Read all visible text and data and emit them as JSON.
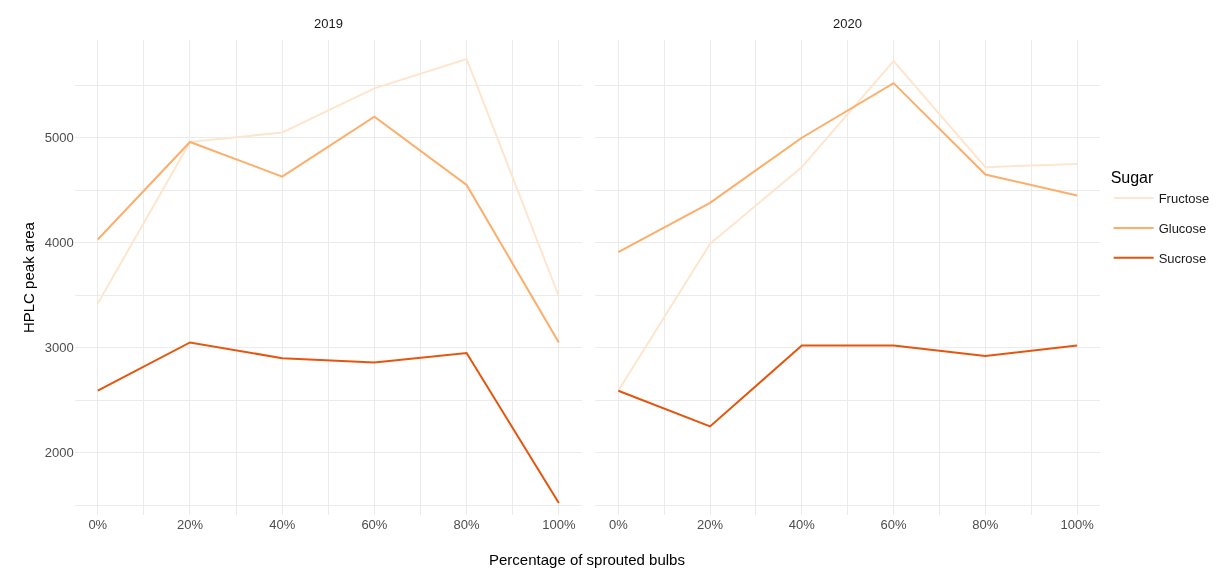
{
  "chart_data": [
    {
      "type": "line",
      "title": "2019",
      "xlabel": "Percentage of sprouted bulbs",
      "ylabel": "HPLC peak area",
      "legend_title": "Sugar",
      "legend": "right",
      "grid": true,
      "tick_labels": "xy",
      "x": [
        0,
        20,
        40,
        60,
        80,
        100
      ],
      "xlim": [
        -5,
        105
      ],
      "xticks": [
        {
          "value": 0,
          "label": "0%"
        },
        {
          "value": 10,
          "label": null
        },
        {
          "value": 20,
          "label": "20%"
        },
        {
          "value": 30,
          "label": null
        },
        {
          "value": 40,
          "label": "40%"
        },
        {
          "value": 50,
          "label": null
        },
        {
          "value": 60,
          "label": "60%"
        },
        {
          "value": 70,
          "label": null
        },
        {
          "value": 80,
          "label": "80%"
        },
        {
          "value": 90,
          "label": null
        },
        {
          "value": 100,
          "label": "100%"
        }
      ],
      "ylim": [
        1405,
        5930
      ],
      "yticks": [
        {
          "value": 1500,
          "label": null
        },
        2000,
        {
          "value": 2500,
          "label": null
        },
        3000,
        {
          "value": 3500,
          "label": null
        },
        4000,
        {
          "value": 4500,
          "label": null
        },
        5000,
        {
          "value": 5500,
          "label": null
        }
      ],
      "series": [
        {
          "name": "Fructose",
          "color": "#fee6ce",
          "values": [
            3420,
            4960,
            5050,
            5470,
            5750,
            3490
          ]
        },
        {
          "name": "Glucose",
          "color": "#fdae6b",
          "values": [
            4030,
            4960,
            4630,
            5200,
            4550,
            3050
          ]
        },
        {
          "name": "Sucrose",
          "color": "#e6550d",
          "values": [
            2590,
            3050,
            2900,
            2860,
            2950,
            1520
          ]
        }
      ]
    },
    {
      "type": "line",
      "title": "2020",
      "grid": true,
      "tick_labels": "x",
      "x": [
        0,
        20,
        40,
        60,
        80,
        100
      ],
      "xlim": [
        -5,
        105
      ],
      "xticks": [
        {
          "value": 0,
          "label": "0%"
        },
        {
          "value": 10,
          "label": null
        },
        {
          "value": 20,
          "label": "20%"
        },
        {
          "value": 30,
          "label": null
        },
        {
          "value": 40,
          "label": "40%"
        },
        {
          "value": 50,
          "label": null
        },
        {
          "value": 60,
          "label": "60%"
        },
        {
          "value": 70,
          "label": null
        },
        {
          "value": 80,
          "label": "80%"
        },
        {
          "value": 90,
          "label": null
        },
        {
          "value": 100,
          "label": "100%"
        }
      ],
      "ylim": [
        1405,
        5930
      ],
      "yticks": [
        {
          "value": 1500,
          "label": null
        },
        2000,
        {
          "value": 2500,
          "label": null
        },
        3000,
        {
          "value": 3500,
          "label": null
        },
        4000,
        {
          "value": 4500,
          "label": null
        },
        5000,
        {
          "value": 5500,
          "label": null
        }
      ],
      "series": [
        {
          "color": "#fee6ce",
          "values": [
            2590,
            3990,
            4720,
            5730,
            4720,
            4750
          ]
        },
        {
          "color": "#fdae6b",
          "values": [
            3910,
            4380,
            5000,
            5520,
            4650,
            4450
          ]
        },
        {
          "color": "#e6550d",
          "values": [
            2590,
            2250,
            3020,
            3020,
            2920,
            3020
          ]
        }
      ]
    }
  ]
}
